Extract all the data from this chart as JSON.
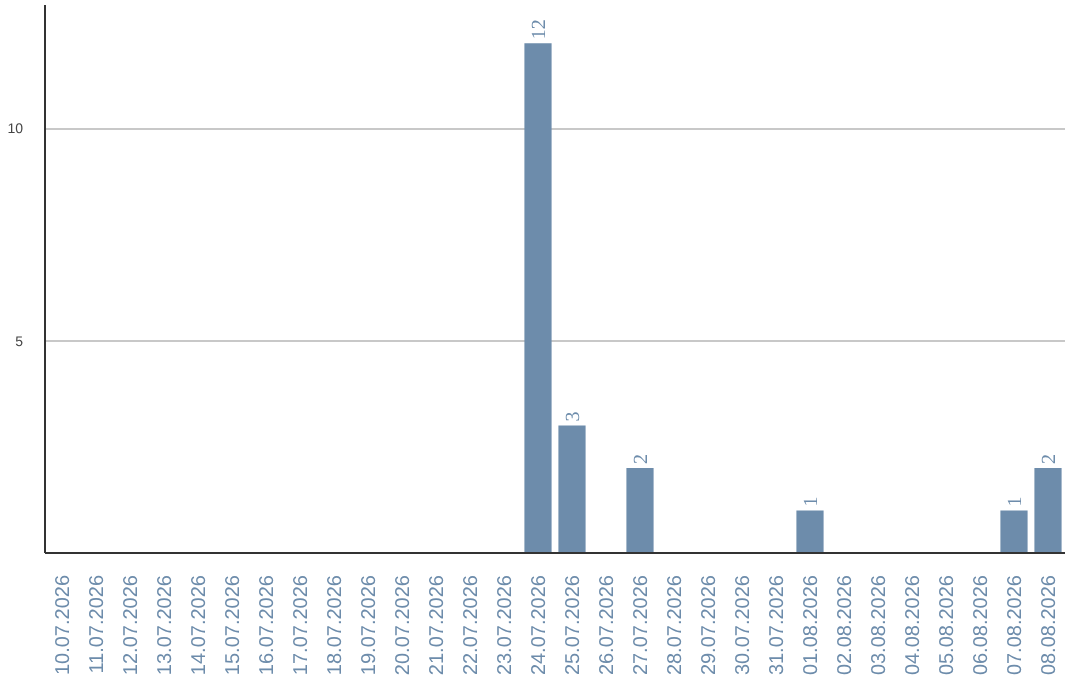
{
  "chart_data": {
    "type": "bar",
    "categories": [
      "10.07.2026",
      "11.07.2026",
      "12.07.2026",
      "13.07.2026",
      "14.07.2026",
      "15.07.2026",
      "16.07.2026",
      "17.07.2026",
      "18.07.2026",
      "19.07.2026",
      "20.07.2026",
      "21.07.2026",
      "22.07.2026",
      "23.07.2026",
      "24.07.2026",
      "25.07.2026",
      "26.07.2026",
      "27.07.2026",
      "28.07.2026",
      "29.07.2026",
      "30.07.2026",
      "31.07.2026",
      "01.08.2026",
      "02.08.2026",
      "03.08.2026",
      "04.08.2026",
      "05.08.2026",
      "06.08.2026",
      "07.08.2026",
      "08.08.2026"
    ],
    "values": [
      0,
      0,
      0,
      0,
      0,
      0,
      0,
      0,
      0,
      0,
      0,
      0,
      0,
      0,
      12,
      3,
      0,
      2,
      0,
      0,
      0,
      0,
      1,
      0,
      0,
      0,
      0,
      0,
      1,
      2
    ],
    "value_labels": [
      null,
      null,
      null,
      null,
      null,
      null,
      null,
      null,
      null,
      null,
      null,
      null,
      null,
      null,
      "12",
      "3",
      null,
      "2",
      null,
      null,
      null,
      null,
      "1",
      null,
      null,
      null,
      null,
      null,
      "1",
      "2"
    ],
    "color": "#6d8cab",
    "ylim": [
      0,
      12.9
    ],
    "yticks": [
      5,
      10
    ],
    "grid": "y"
  }
}
